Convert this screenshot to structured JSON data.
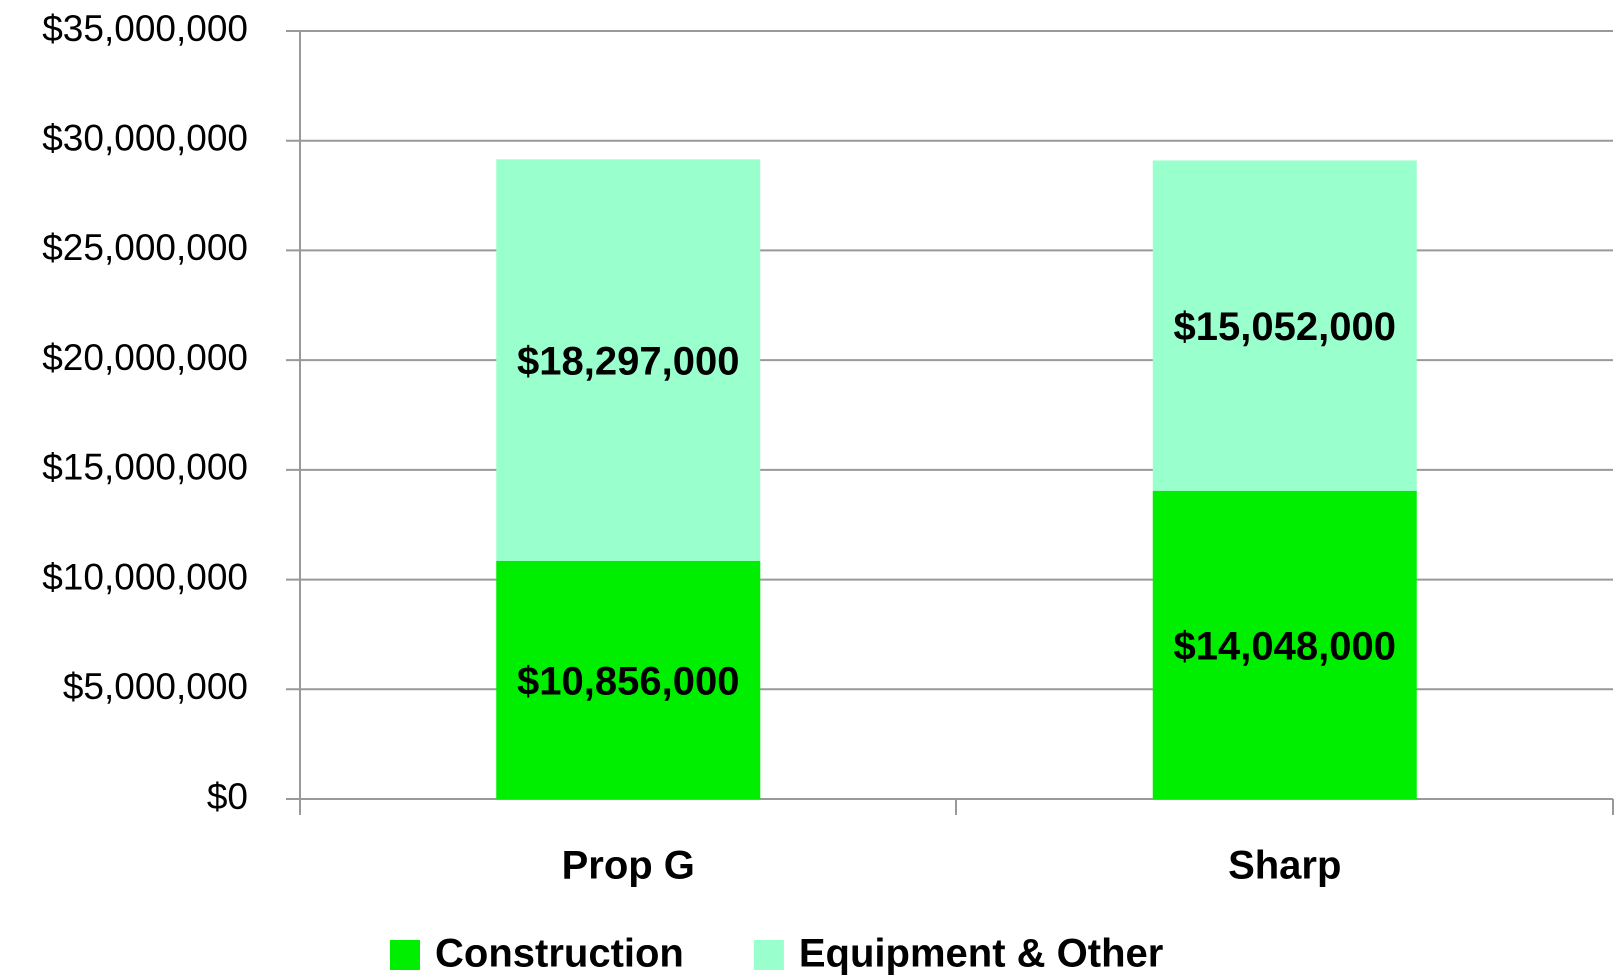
{
  "chart_data": {
    "type": "stacked_bar",
    "categories": [
      "Prop G",
      "Sharp"
    ],
    "series": [
      {
        "name": "Construction",
        "color": "#00ee00",
        "values": [
          10856000,
          14048000
        ],
        "value_labels": [
          "$10,856,000",
          "$14,048,000"
        ]
      },
      {
        "name": "Equipment & Other",
        "color": "#99ffcc",
        "values": [
          18297000,
          15052000
        ],
        "value_labels": [
          "$18,297,000",
          "$15,052,000"
        ]
      }
    ],
    "ylim": [
      0,
      35000000
    ],
    "yticks": [
      {
        "value": 0,
        "label": "$0"
      },
      {
        "value": 5000000,
        "label": "$5,000,000"
      },
      {
        "value": 10000000,
        "label": "$10,000,000"
      },
      {
        "value": 15000000,
        "label": "$15,000,000"
      },
      {
        "value": 20000000,
        "label": "$20,000,000"
      },
      {
        "value": 25000000,
        "label": "$25,000,000"
      },
      {
        "value": 30000000,
        "label": "$30,000,000"
      },
      {
        "value": 35000000,
        "label": "$35,000,000"
      }
    ],
    "grid": true,
    "legend": "bottom"
  }
}
